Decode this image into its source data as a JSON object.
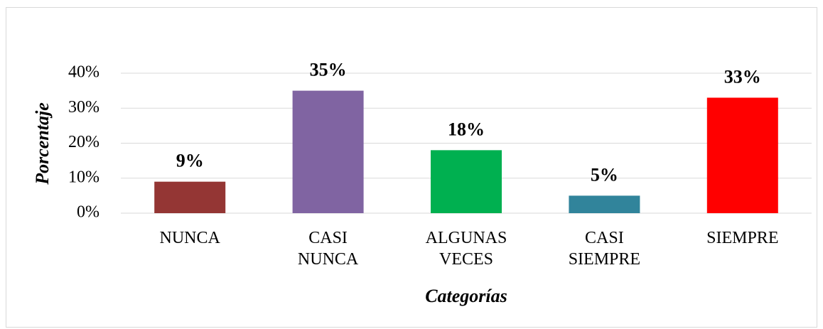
{
  "chart_data": {
    "type": "bar",
    "categories": [
      "NUNCA",
      "CASI NUNCA",
      "ALGUNAS VECES",
      "CASI SIEMPRE",
      "SIEMPRE"
    ],
    "values": [
      9,
      35,
      18,
      5,
      33
    ],
    "value_labels": [
      "9%",
      "35%",
      "18%",
      "5%",
      "33%"
    ],
    "colors": [
      "#943634",
      "#8064a2",
      "#00b050",
      "#31849b",
      "#ff0000"
    ],
    "ylim": [
      0,
      40
    ],
    "yticks": [
      {
        "value": 0,
        "label": "0%"
      },
      {
        "value": 10,
        "label": "10%"
      },
      {
        "value": 20,
        "label": "20%"
      },
      {
        "value": 30,
        "label": "30%"
      },
      {
        "value": 40,
        "label": "40%"
      }
    ],
    "ylabel": "Porcentaje",
    "xlabel": "Categorías",
    "grid": true
  }
}
